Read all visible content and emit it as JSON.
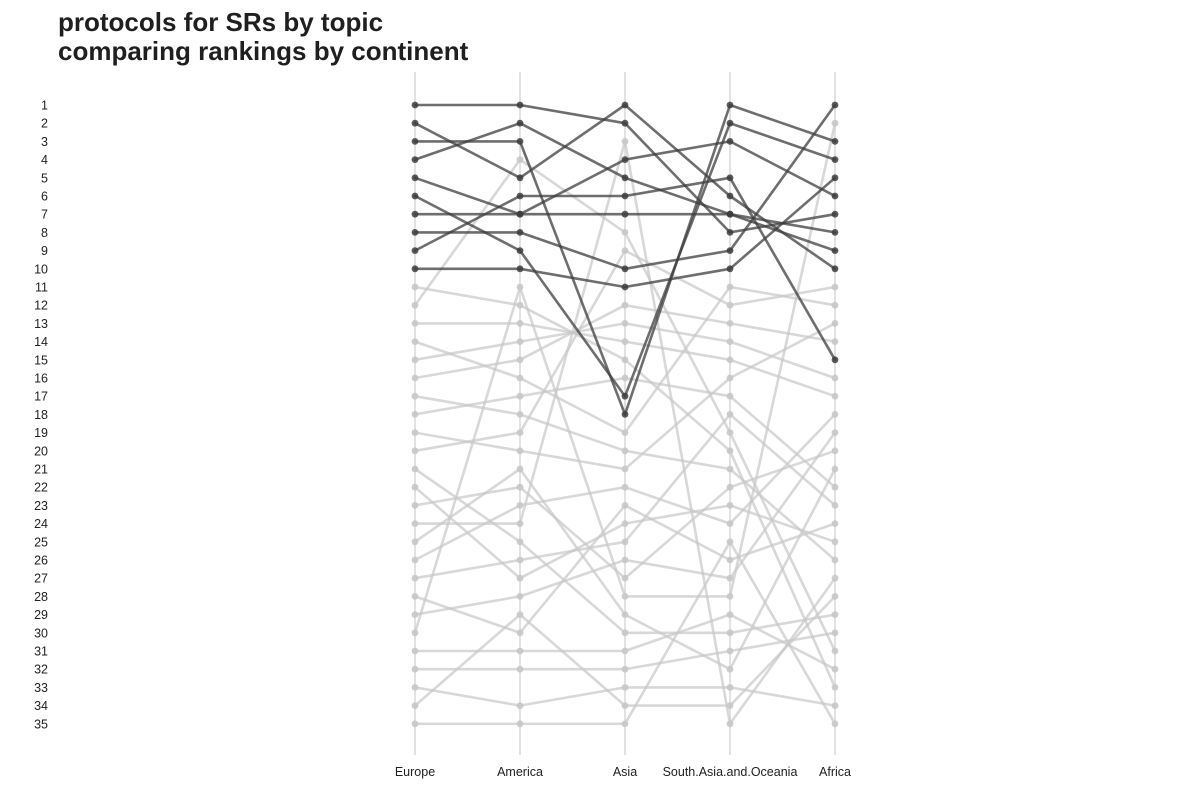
{
  "chart_data": {
    "type": "line",
    "title": "protocols for SRs by topic",
    "subtitle": "comparing rankings by continent",
    "xlabel": "",
    "ylabel": "",
    "categories": [
      "Europe",
      "America",
      "Asia",
      "South.Asia.and.Oceania",
      "Africa"
    ],
    "y_ticks": [
      1,
      2,
      3,
      4,
      5,
      6,
      7,
      8,
      9,
      10,
      11,
      12,
      13,
      14,
      15,
      16,
      17,
      18,
      19,
      20,
      21,
      22,
      23,
      24,
      25,
      26,
      27,
      28,
      29,
      30,
      31,
      32,
      33,
      34,
      35
    ],
    "ylim": [
      35,
      1
    ],
    "y_reversed": true,
    "grid": false,
    "legend": "none",
    "highlight_rule": "topics ranked in the top 10 in Europe are drawn dark",
    "colors": {
      "highlight": "#3d3d3d",
      "muted": "#c8c8c8",
      "axis_line": "#e2e2e2"
    },
    "series": [
      {
        "values": [
          1,
          1,
          2,
          8,
          7
        ],
        "highlight": true
      },
      {
        "values": [
          2,
          5,
          1,
          6,
          10
        ],
        "highlight": true
      },
      {
        "values": [
          3,
          3,
          18,
          1,
          3
        ],
        "highlight": true
      },
      {
        "values": [
          4,
          2,
          5,
          7,
          9
        ],
        "highlight": true
      },
      {
        "values": [
          5,
          7,
          4,
          3,
          6
        ],
        "highlight": true
      },
      {
        "values": [
          6,
          9,
          17,
          2,
          4
        ],
        "highlight": true
      },
      {
        "values": [
          7,
          7,
          7,
          7,
          8
        ],
        "highlight": true
      },
      {
        "values": [
          8,
          8,
          10,
          9,
          1
        ],
        "highlight": true
      },
      {
        "values": [
          9,
          6,
          6,
          5,
          15
        ],
        "highlight": true
      },
      {
        "values": [
          10,
          10,
          11,
          10,
          5
        ],
        "highlight": true
      },
      {
        "values": [
          11,
          12,
          15,
          20,
          33
        ],
        "highlight": false
      },
      {
        "values": [
          12,
          4,
          8,
          19,
          31
        ],
        "highlight": false
      },
      {
        "values": [
          13,
          13,
          14,
          15,
          17
        ],
        "highlight": false
      },
      {
        "values": [
          14,
          16,
          19,
          11,
          12
        ],
        "highlight": false
      },
      {
        "values": [
          15,
          14,
          13,
          14,
          16
        ],
        "highlight": false
      },
      {
        "values": [
          16,
          15,
          12,
          13,
          14
        ],
        "highlight": false
      },
      {
        "values": [
          17,
          18,
          20,
          21,
          26
        ],
        "highlight": false
      },
      {
        "values": [
          18,
          17,
          16,
          17,
          22
        ],
        "highlight": false
      },
      {
        "values": [
          19,
          20,
          21,
          16,
          13
        ],
        "highlight": false
      },
      {
        "values": [
          20,
          19,
          9,
          12,
          11
        ],
        "highlight": false
      },
      {
        "values": [
          21,
          25,
          30,
          30,
          29
        ],
        "highlight": false
      },
      {
        "values": [
          22,
          27,
          24,
          23,
          25
        ],
        "highlight": false
      },
      {
        "values": [
          23,
          22,
          27,
          22,
          20
        ],
        "highlight": false
      },
      {
        "values": [
          24,
          24,
          3,
          35,
          27
        ],
        "highlight": false
      },
      {
        "values": [
          25,
          21,
          29,
          32,
          21
        ],
        "highlight": false
      },
      {
        "values": [
          26,
          23,
          22,
          24,
          18
        ],
        "highlight": false
      },
      {
        "values": [
          27,
          26,
          25,
          18,
          23
        ],
        "highlight": false
      },
      {
        "values": [
          28,
          30,
          23,
          26,
          24
        ],
        "highlight": false
      },
      {
        "values": [
          29,
          28,
          26,
          27,
          19
        ],
        "highlight": false
      },
      {
        "values": [
          30,
          11,
          28,
          28,
          2
        ],
        "highlight": false
      },
      {
        "values": [
          31,
          31,
          31,
          29,
          32
        ],
        "highlight": false
      },
      {
        "values": [
          32,
          32,
          32,
          31,
          30
        ],
        "highlight": false
      },
      {
        "values": [
          33,
          34,
          33,
          33,
          34
        ],
        "highlight": false
      },
      {
        "values": [
          34,
          29,
          34,
          34,
          28
        ],
        "highlight": false
      },
      {
        "values": [
          35,
          35,
          35,
          25,
          35
        ],
        "highlight": false
      }
    ]
  }
}
